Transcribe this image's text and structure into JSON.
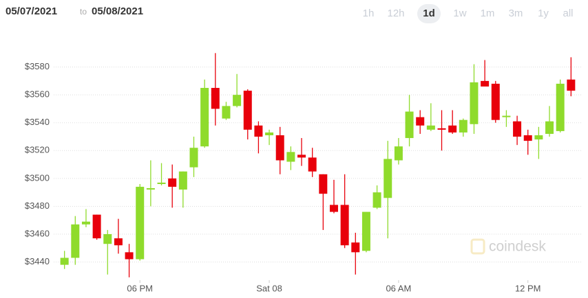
{
  "header": {
    "date_from": "05/07/2021",
    "separator": "to",
    "date_to": "05/08/2021",
    "ranges": [
      "1h",
      "12h",
      "1d",
      "1w",
      "1m",
      "3m",
      "1y",
      "all"
    ],
    "selected_range_index": 2
  },
  "watermark": "coindesk",
  "chart_data": {
    "type": "candlestick",
    "x": [
      14.5,
      15,
      15.5,
      16,
      16.5,
      17,
      17.5,
      18,
      18.5,
      19,
      19.5,
      20,
      20.5,
      21,
      21.5,
      22,
      22.5,
      23,
      23.5,
      24,
      24.5,
      25,
      25.5,
      26,
      26.5,
      27,
      27.5,
      28,
      28.5,
      29,
      29.5,
      30,
      30.5,
      31,
      31.5,
      32,
      32.5,
      33,
      33.5,
      34,
      34.5,
      35,
      35.5,
      36,
      36.5,
      37,
      37.5,
      38
    ],
    "open": [
      3438,
      3443,
      3467,
      3474,
      3453,
      3457,
      3447,
      3442,
      3492,
      3496,
      3500,
      3492,
      3508,
      3523,
      3565,
      3543,
      3552,
      3563,
      3538,
      3531,
      3531,
      3512,
      3517,
      3515,
      3503,
      3481,
      3481,
      3454,
      3448,
      3479,
      3486,
      3513,
      3529,
      3544,
      3535,
      3536,
      3538,
      3533,
      3539,
      3570,
      3568,
      3544,
      3541,
      3531,
      3528,
      3532,
      3534,
      3571
    ],
    "high": [
      3448,
      3473,
      3478,
      3474,
      3463,
      3471,
      3453,
      3496,
      3513,
      3511,
      3510,
      3505,
      3530,
      3571,
      3590,
      3555,
      3575,
      3564,
      3541,
      3535,
      3537,
      3523,
      3529,
      3522,
      3503,
      3499,
      3503,
      3461,
      3476,
      3495,
      3527,
      3529,
      3560,
      3549,
      3554,
      3549,
      3549,
      3543,
      3582,
      3585,
      3570,
      3549,
      3545,
      3535,
      3537,
      3552,
      3571,
      3587
    ],
    "low": [
      3435,
      3438,
      3465,
      3456,
      3431,
      3446,
      3429,
      3441,
      3480,
      3495,
      3479,
      3479,
      3501,
      3522,
      3538,
      3542,
      3551,
      3528,
      3518,
      3524,
      3503,
      3506,
      3509,
      3501,
      3463,
      3475,
      3450,
      3431,
      3447,
      3478,
      3457,
      3510,
      3523,
      3532,
      3534,
      3520,
      3532,
      3530,
      3532,
      3566,
      3540,
      3537,
      3524,
      3517,
      3514,
      3530,
      3533,
      3559
    ],
    "close": [
      3443,
      3467,
      3469,
      3457,
      3460,
      3452,
      3442,
      3494,
      3493,
      3497,
      3494,
      3505,
      3522,
      3565,
      3550,
      3552,
      3560,
      3535,
      3530,
      3533,
      3513,
      3519,
      3515,
      3505,
      3489,
      3476,
      3452,
      3447,
      3476,
      3490,
      3514,
      3523,
      3548,
      3538,
      3538,
      3535,
      3533,
      3542,
      3569,
      3566,
      3542,
      3545,
      3530,
      3527,
      3531,
      3541,
      3568,
      3563
    ],
    "up_color": "#8fdb2c",
    "down_color": "#e8000b",
    "xlim": [
      14,
      38.5
    ],
    "xticks": [
      {
        "value": 18,
        "label": "06 PM"
      },
      {
        "value": 24,
        "label": "Sat 08"
      },
      {
        "value": 30,
        "label": "06 AM"
      },
      {
        "value": 36,
        "label": "12 PM"
      }
    ],
    "ylim": [
      3425,
      3601
    ],
    "yticks": [
      {
        "value": 3440,
        "label": "$3440"
      },
      {
        "value": 3460,
        "label": "$3460"
      },
      {
        "value": 3480,
        "label": "$3480"
      },
      {
        "value": 3500,
        "label": "$3500"
      },
      {
        "value": 3520,
        "label": "$3520"
      },
      {
        "value": 3540,
        "label": "$3540"
      },
      {
        "value": 3560,
        "label": "$3560"
      },
      {
        "value": 3580,
        "label": "$3580"
      }
    ],
    "grid": true
  }
}
